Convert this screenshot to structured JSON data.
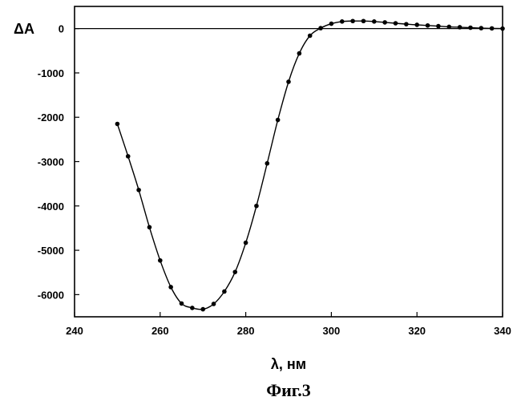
{
  "chart_data": {
    "type": "line",
    "xlabel": "λ, нм",
    "ylabel": "ΔA",
    "caption": "Фиг.3",
    "xlim": [
      240,
      340
    ],
    "ylim": [
      -6500,
      500
    ],
    "x_ticks": [
      240,
      260,
      280,
      300,
      320,
      340
    ],
    "y_ticks": [
      0,
      -1000,
      -2000,
      -3000,
      -4000,
      -5000,
      -6000
    ],
    "zero_line": true,
    "grid": false,
    "series": [
      {
        "x": [
          250,
          252.5,
          255,
          257.5,
          260,
          262.5,
          265,
          267.5,
          270,
          272.5,
          275,
          277.5,
          280,
          282.5,
          285,
          287.5,
          290,
          292.5,
          295,
          297.5,
          300,
          302.5,
          305,
          307.5,
          310,
          312.5,
          315,
          317.5,
          320,
          322.5,
          325,
          327.5,
          330,
          332.5,
          335,
          337.5,
          340
        ],
        "y": [
          -2150,
          -2880,
          -3640,
          -4480,
          -5230,
          -5830,
          -6200,
          -6300,
          -6330,
          -6210,
          -5930,
          -5490,
          -4830,
          -4000,
          -3040,
          -2060,
          -1200,
          -560,
          -160,
          10,
          110,
          160,
          170,
          170,
          160,
          140,
          120,
          100,
          85,
          70,
          55,
          40,
          30,
          20,
          10,
          5,
          0
        ]
      }
    ]
  }
}
